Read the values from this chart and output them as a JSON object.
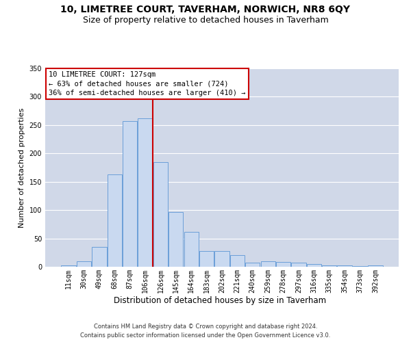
{
  "title": "10, LIMETREE COURT, TAVERHAM, NORWICH, NR8 6QY",
  "subtitle": "Size of property relative to detached houses in Taverham",
  "xlabel": "Distribution of detached houses by size in Taverham",
  "ylabel": "Number of detached properties",
  "categories": [
    "11sqm",
    "30sqm",
    "49sqm",
    "68sqm",
    "87sqm",
    "106sqm",
    "126sqm",
    "145sqm",
    "164sqm",
    "183sqm",
    "202sqm",
    "221sqm",
    "240sqm",
    "259sqm",
    "278sqm",
    "297sqm",
    "316sqm",
    "335sqm",
    "354sqm",
    "373sqm",
    "392sqm"
  ],
  "values": [
    2,
    10,
    35,
    163,
    257,
    262,
    185,
    97,
    62,
    28,
    28,
    20,
    7,
    10,
    8,
    7,
    5,
    3,
    2,
    1,
    2
  ],
  "bar_color": "#c9d9f0",
  "bar_edge_color": "#6a9fd8",
  "vline_color": "#cc0000",
  "annotation_box_color": "#cc0000",
  "marker_label": "10 LIMETREE COURT: 127sqm",
  "annotation_line1": "← 63% of detached houses are smaller (724)",
  "annotation_line2": "36% of semi-detached houses are larger (410) →",
  "background_color": "#ffffff",
  "grid_color": "#d0d8e8",
  "footer1": "Contains HM Land Registry data © Crown copyright and database right 2024.",
  "footer2": "Contains public sector information licensed under the Open Government Licence v3.0.",
  "ylim": [
    0,
    350
  ],
  "yticks": [
    0,
    50,
    100,
    150,
    200,
    250,
    300,
    350
  ],
  "title_fontsize": 10,
  "subtitle_fontsize": 9,
  "axis_label_fontsize": 8,
  "tick_fontsize": 7,
  "annotation_fontsize": 7.5,
  "footer_fontsize": 6
}
